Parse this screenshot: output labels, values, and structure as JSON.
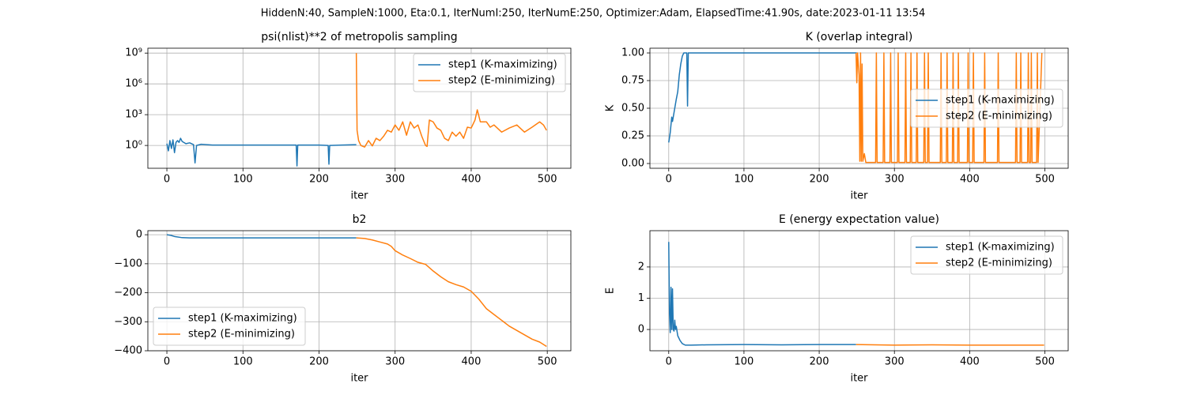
{
  "title": "HiddenN:40, SampleN:1000, Eta:0.1, IterNumI:250, IterNumE:250, Optimizer:Adam, ElapsedTime:41.90s, date:2023-01-11  13:54",
  "chart_data": [
    {
      "type": "line",
      "title": "psi(nlist)**2 of metropolis sampling",
      "x_label": "iter",
      "yscale": "log",
      "grid": true,
      "legend": "upper right",
      "xlim": [
        -25,
        531
      ],
      "xticks": [
        0,
        100,
        200,
        300,
        400,
        500
      ],
      "ylim": [
        0.006,
        3000000000
      ],
      "yticks": [
        {
          "value": 1,
          "label": "10⁰"
        },
        {
          "value": 1000,
          "label": "10³"
        },
        {
          "value": 1000000,
          "label": "10⁶"
        },
        {
          "value": 1000000000,
          "label": "10⁹"
        }
      ],
      "series": [
        {
          "name": "step1 (K-maximizing)",
          "color": "#1f77b4",
          "x": [
            0,
            2,
            4,
            6,
            8,
            10,
            12,
            14,
            16,
            18,
            20,
            25,
            30,
            35,
            37,
            39,
            45,
            60,
            100,
            150,
            170,
            171,
            172,
            200,
            212,
            213,
            214,
            230,
            249
          ],
          "values": [
            1.5,
            0.3,
            3,
            0.5,
            3.5,
            0.2,
            2,
            3,
            2,
            5,
            2.5,
            1.5,
            1.8,
            1.2,
            0.02,
            1,
            1.3,
            1.1,
            1.1,
            1.1,
            1.1,
            0.01,
            1.1,
            1.1,
            1,
            0.015,
            1,
            1.1,
            1.2
          ]
        },
        {
          "name": "step2 (E-minimizing)",
          "color": "#ff7f0e",
          "x": [
            249,
            250,
            252,
            255,
            260,
            265,
            270,
            275,
            280,
            285,
            290,
            295,
            300,
            305,
            310,
            315,
            320,
            325,
            330,
            335,
            340,
            342,
            345,
            350,
            355,
            360,
            365,
            370,
            375,
            380,
            385,
            390,
            395,
            400,
            405,
            408,
            412,
            420,
            425,
            430,
            440,
            450,
            460,
            470,
            480,
            490,
            495,
            499
          ],
          "values": [
            1000000000,
            30,
            3,
            1,
            0.7,
            3,
            0.9,
            5,
            3,
            8,
            30,
            20,
            100,
            30,
            200,
            10,
            200,
            50,
            100,
            8,
            1,
            0.8,
            300,
            200,
            50,
            30,
            5,
            3,
            20,
            8,
            20,
            5,
            60,
            50,
            300,
            3000,
            200,
            200,
            60,
            100,
            20,
            50,
            100,
            20,
            60,
            200,
            100,
            30
          ]
        }
      ]
    },
    {
      "type": "line",
      "title": "K (overlap integral)",
      "x_label": "iter",
      "y_label": "K",
      "grid": true,
      "legend": "center right",
      "xlim": [
        -25,
        531
      ],
      "xticks": [
        0,
        100,
        200,
        300,
        400,
        500
      ],
      "ylim": [
        -0.043,
        1.043
      ],
      "yticks": [
        {
          "value": 0,
          "label": "0.00"
        },
        0.25,
        {
          "value": 0.5,
          "label": "0.50"
        },
        0.75,
        {
          "value": 1,
          "label": "1.00"
        }
      ],
      "series": [
        {
          "name": "step1 (K-maximizing)",
          "color": "#1f77b4",
          "x": [
            0,
            2,
            4,
            5,
            6,
            8,
            10,
            12,
            14,
            16,
            18,
            20,
            24,
            25,
            26,
            250
          ],
          "values": [
            0.19,
            0.28,
            0.42,
            0.38,
            0.42,
            0.5,
            0.58,
            0.65,
            0.8,
            0.9,
            0.97,
            1,
            1,
            0.52,
            1,
            1
          ]
        },
        {
          "name": "step2 (E-minimizing)",
          "color": "#ff7f0e",
          "x": [
            249,
            250,
            251,
            253,
            254,
            255,
            256,
            257,
            258,
            260,
            262,
            275,
            276,
            277,
            285,
            286,
            287,
            294,
            295,
            296,
            304,
            305,
            306,
            314,
            315,
            316,
            321,
            322,
            323,
            329,
            330,
            331,
            339,
            340,
            341,
            344,
            345,
            346,
            361,
            362,
            363,
            369,
            370,
            371,
            377,
            378,
            379,
            384,
            385,
            386,
            397,
            398,
            399,
            404,
            405,
            406,
            419,
            420,
            421,
            437,
            438,
            439,
            461,
            462,
            463,
            467,
            468,
            469,
            477,
            478,
            479,
            481,
            482,
            483,
            489,
            490,
            491,
            496
          ],
          "values": [
            1,
            0.73,
            1,
            0.8,
            0.02,
            1,
            0.02,
            0.9,
            0.02,
            0.09,
            0.01,
            0.01,
            1,
            0.01,
            0.01,
            1,
            0.01,
            0.01,
            1,
            0.01,
            0.01,
            1,
            0.01,
            0.01,
            1,
            0.01,
            0.01,
            1,
            0.01,
            0.01,
            1,
            0.01,
            0.01,
            1,
            0.01,
            0.01,
            1,
            0.01,
            0.01,
            1,
            0.01,
            0.01,
            1,
            0.01,
            0.01,
            1,
            0.01,
            0.01,
            1,
            0.01,
            0.01,
            1,
            0.01,
            0.01,
            1,
            0.01,
            0.01,
            1,
            0.01,
            0.01,
            1,
            0.01,
            0.01,
            1,
            0.01,
            0.01,
            1,
            0.01,
            0.01,
            1,
            0.01,
            0.01,
            1,
            0.01,
            0.01,
            1,
            0.01,
            1
          ]
        }
      ]
    },
    {
      "type": "line",
      "title": "b2",
      "x_label": "iter",
      "grid": true,
      "legend": "lower left",
      "xlim": [
        -25,
        531
      ],
      "xticks": [
        0,
        100,
        200,
        300,
        400,
        500
      ],
      "ylim": [
        -400,
        14
      ],
      "yticks": [
        {
          "value": -400,
          "label": "−400"
        },
        {
          "value": -300,
          "label": "−300"
        },
        {
          "value": -200,
          "label": "−200"
        },
        {
          "value": -100,
          "label": "−100"
        },
        0
      ],
      "series": [
        {
          "name": "step1 (K-maximizing)",
          "color": "#1f77b4",
          "x": [
            0,
            5,
            10,
            20,
            30,
            249
          ],
          "values": [
            0,
            -2,
            -6,
            -10,
            -11,
            -11
          ]
        },
        {
          "name": "step2 (E-minimizing)",
          "color": "#ff7f0e",
          "x": [
            249,
            260,
            270,
            280,
            290,
            295,
            300,
            310,
            320,
            330,
            340,
            350,
            360,
            370,
            380,
            390,
            400,
            410,
            420,
            430,
            440,
            450,
            460,
            470,
            480,
            490,
            499
          ],
          "values": [
            -11,
            -13,
            -18,
            -25,
            -32,
            -40,
            -55,
            -70,
            -82,
            -95,
            -102,
            -125,
            -145,
            -162,
            -172,
            -180,
            -195,
            -222,
            -255,
            -275,
            -295,
            -315,
            -330,
            -345,
            -360,
            -370,
            -385
          ]
        }
      ]
    },
    {
      "type": "line",
      "title": "E (energy expectation value)",
      "x_label": "iter",
      "y_label": "E",
      "grid": true,
      "legend": "upper right",
      "xlim": [
        -25,
        531
      ],
      "xticks": [
        0,
        100,
        200,
        300,
        400,
        500
      ],
      "ylim": [
        -0.68,
        3.16
      ],
      "yticks": [
        0,
        1,
        2
      ],
      "series": [
        {
          "name": "step1 (K-maximizing)",
          "color": "#1f77b4",
          "x": [
            0,
            1,
            2,
            3,
            4,
            5,
            6,
            7,
            8,
            9,
            10,
            12,
            15,
            18,
            22,
            30,
            50,
            100,
            150,
            200,
            249
          ],
          "values": [
            2.8,
            0.5,
            -0.1,
            1.35,
            0,
            1.3,
            0,
            -0.05,
            0.3,
            0,
            0.1,
            -0.2,
            -0.35,
            -0.45,
            -0.5,
            -0.5,
            -0.49,
            -0.48,
            -0.49,
            -0.48,
            -0.48
          ]
        },
        {
          "name": "step2 (E-minimizing)",
          "color": "#ff7f0e",
          "x": [
            249,
            300,
            350,
            400,
            450,
            499
          ],
          "values": [
            -0.48,
            -0.5,
            -0.49,
            -0.5,
            -0.5,
            -0.5
          ]
        }
      ]
    }
  ]
}
